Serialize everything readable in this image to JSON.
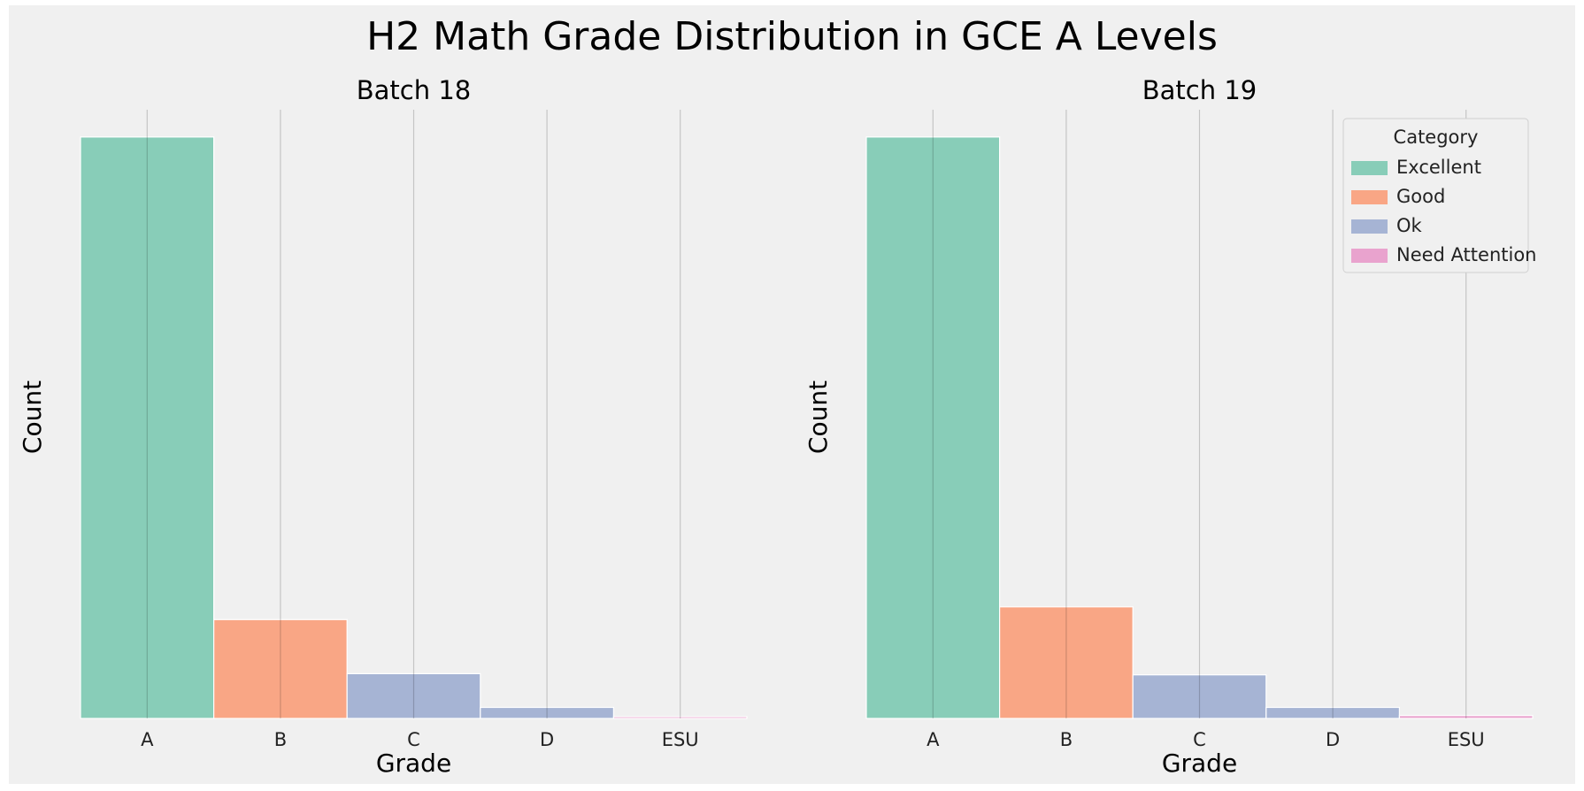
{
  "chart_data": {
    "type": "bar",
    "title": "H2 Math Grade Distribution in GCE A Levels",
    "categories": [
      "A",
      "B",
      "C",
      "D",
      "ESU"
    ],
    "xlabel": "Grade",
    "ylabel": "Count",
    "ylim": [
      0,
      100
    ],
    "grid": "vertical only",
    "legend": {
      "title": "Category",
      "placement": "top-right",
      "entries": [
        {
          "name": "Excellent",
          "color": "#66c2a5"
        },
        {
          "name": "Good",
          "color": "#fc8d62"
        },
        {
          "name": "Ok",
          "color": "#8da0cb"
        },
        {
          "name": "Need Attention",
          "color": "#e78ac3"
        }
      ]
    },
    "category_colors": {
      "A": "#66c2a5",
      "B": "#fc8d62",
      "C": "#8da0cb",
      "D": "#8da0cb",
      "ESU": "#e78ac3"
    },
    "panels": [
      {
        "title": "Batch 18",
        "values": [
          100,
          17,
          7.7,
          1.9,
          0.3
        ]
      },
      {
        "title": "Batch 19",
        "values": [
          100,
          19.2,
          7.5,
          1.9,
          0.5
        ]
      }
    ]
  }
}
